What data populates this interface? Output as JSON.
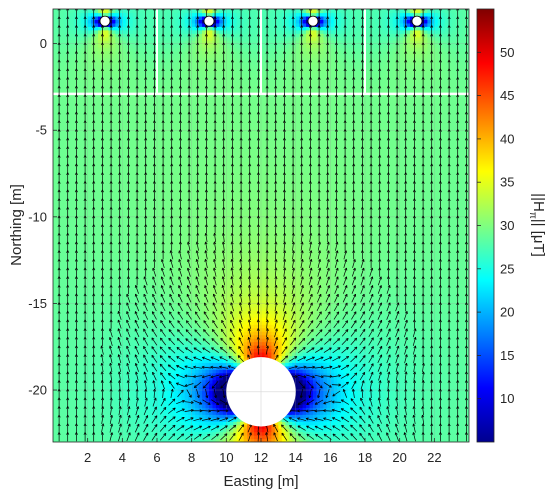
{
  "chart_data": {
    "type": "heatmap",
    "title": "",
    "xlabel": "Easting [m]",
    "ylabel": "Northing [m]",
    "xlim": [
      0,
      24
    ],
    "ylim": [
      -23,
      2
    ],
    "xticks": [
      2,
      4,
      6,
      8,
      10,
      12,
      14,
      16,
      18,
      20,
      22
    ],
    "xtick_labels": [
      "2",
      "4",
      "6",
      "8",
      "10",
      "12",
      "14",
      "16",
      "18",
      "20",
      "22"
    ],
    "yticks": [
      0,
      -5,
      -10,
      -15,
      -20
    ],
    "ytick_labels": [
      "0",
      "-5",
      "-10",
      "-15",
      "-20"
    ],
    "colorbar": {
      "label": "||Hπ|| [μT]",
      "label_main": "||H",
      "label_sub": "π",
      "label_tail": "|| [μT]",
      "min": 5,
      "max": 55,
      "ticks": [
        10,
        15,
        20,
        25,
        30,
        35,
        40,
        45,
        50
      ],
      "tick_labels": [
        "10",
        "15",
        "20",
        "25",
        "30",
        "35",
        "40",
        "45",
        "50"
      ],
      "colormap": "jet"
    },
    "background_field_uT": 29,
    "vector_field": {
      "shown": true,
      "dominant_direction": "north",
      "arrow_color": "#000000"
    },
    "main_anomaly": {
      "center": [
        12,
        -20.1
      ],
      "radius": 2.0,
      "peak_uT": 55,
      "min_uT": 8
    },
    "small_anomalies": [
      {
        "center": [
          3,
          1.3
        ]
      },
      {
        "center": [
          9,
          1.3
        ]
      },
      {
        "center": [
          15,
          1.3
        ]
      },
      {
        "center": [
          21,
          1.3
        ]
      }
    ],
    "survey_lines": {
      "northing": -2.9,
      "vertical_eastings": [
        6,
        12,
        18
      ],
      "color": "#ffffff"
    },
    "grid": true
  }
}
